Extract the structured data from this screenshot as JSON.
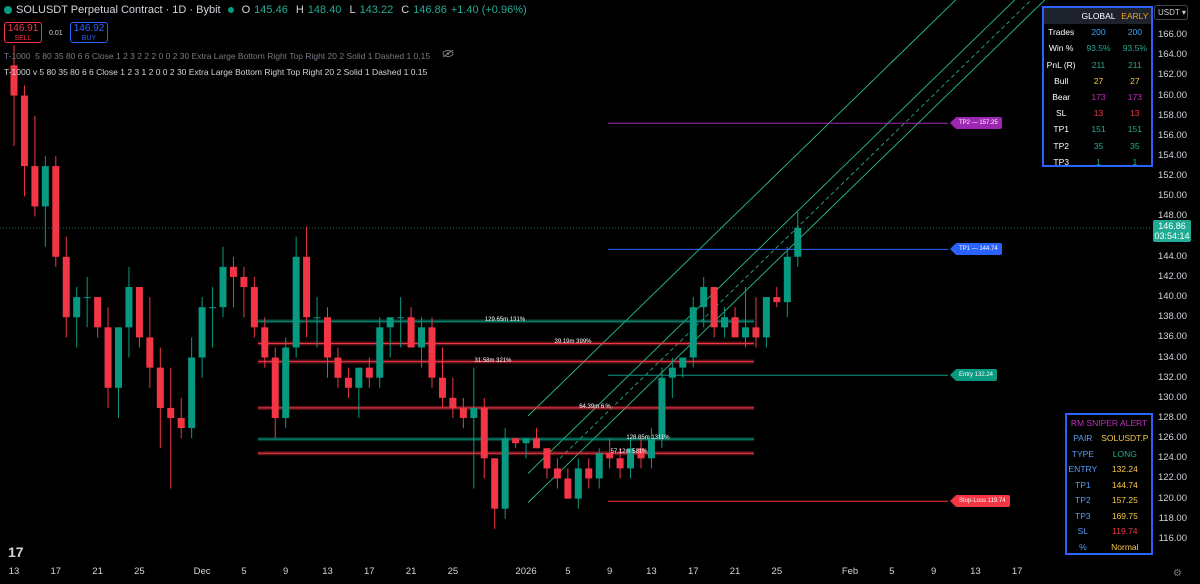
{
  "header": {
    "symbol": "SOLUSDT Perpetual Contract · 1D · Bybit",
    "o_label": "O",
    "o": "145.46",
    "h_label": "H",
    "h": "148.40",
    "l_label": "L",
    "l": "143.22",
    "c_label": "C",
    "c": "146.86",
    "change": "+1.40 (+0.96%)"
  },
  "trade": {
    "sell_price": "146.91",
    "sell_label": "SELL",
    "spread": "0.01",
    "buy_price": "146.92",
    "buy_label": "BUY"
  },
  "indicators": {
    "line1": "T-1000  5 80 35 80 6 6 Close 1 2 3 2 2 2 0 0 2 30 Extra Large Bottom Right Top Right 20 2 Solid 1 Dashed 1 0.15",
    "line2": "T-1000 v 5 80 35 80 6 6 Close 1 2 3 1 2 0 0 2 30 Extra Large Bottom Right Top Right 20 2 Solid 1 Dashed 1 0.15"
  },
  "currency": "USDT",
  "current_price": {
    "price": "146.86",
    "countdown": "03:54:14"
  },
  "y_axis": {
    "ticks": [
      "166.00",
      "164.00",
      "162.00",
      "160.00",
      "158.00",
      "156.00",
      "154.00",
      "152.00",
      "150.00",
      "148.00",
      "144.00",
      "142.00",
      "140.00",
      "138.00",
      "136.00",
      "134.00",
      "132.00",
      "130.00",
      "128.00",
      "126.00",
      "124.00",
      "122.00",
      "120.00",
      "118.00",
      "116.00"
    ],
    "range": [
      115,
      167.5
    ]
  },
  "x_axis": {
    "ticks": [
      {
        "label": "13",
        "i": 0
      },
      {
        "label": "17",
        "i": 4
      },
      {
        "label": "21",
        "i": 8
      },
      {
        "label": "25",
        "i": 12
      },
      {
        "label": "Dec",
        "i": 18
      },
      {
        "label": "5",
        "i": 22
      },
      {
        "label": "9",
        "i": 26
      },
      {
        "label": "13",
        "i": 30
      },
      {
        "label": "17",
        "i": 34
      },
      {
        "label": "21",
        "i": 38
      },
      {
        "label": "25",
        "i": 42
      },
      {
        "label": "2026",
        "i": 49
      },
      {
        "label": "5",
        "i": 53
      },
      {
        "label": "9",
        "i": 57
      },
      {
        "label": "13",
        "i": 61
      },
      {
        "label": "17",
        "i": 65
      },
      {
        "label": "21",
        "i": 69
      },
      {
        "label": "25",
        "i": 73
      },
      {
        "label": "Feb",
        "i": 80
      },
      {
        "label": "5",
        "i": 84
      },
      {
        "label": "9",
        "i": 88
      },
      {
        "label": "13",
        "i": 92
      },
      {
        "label": "17",
        "i": 96
      }
    ]
  },
  "chart_data": {
    "type": "candlestick",
    "symbol": "SOLUSDT",
    "interval": "1D",
    "ylim": [
      115,
      167.5
    ],
    "candles": [
      {
        "o": 163,
        "h": 165,
        "l": 155,
        "c": 160
      },
      {
        "o": 160,
        "h": 161,
        "l": 150,
        "c": 153
      },
      {
        "o": 153,
        "h": 158,
        "l": 148,
        "c": 149
      },
      {
        "o": 149,
        "h": 154,
        "l": 145,
        "c": 153
      },
      {
        "o": 153,
        "h": 154,
        "l": 143,
        "c": 144
      },
      {
        "o": 144,
        "h": 146,
        "l": 136,
        "c": 138
      },
      {
        "o": 138,
        "h": 141,
        "l": 135,
        "c": 140
      },
      {
        "o": 140,
        "h": 142,
        "l": 137,
        "c": 140
      },
      {
        "o": 140,
        "h": 140,
        "l": 136,
        "c": 137
      },
      {
        "o": 137,
        "h": 139,
        "l": 129,
        "c": 131
      },
      {
        "o": 131,
        "h": 137,
        "l": 128,
        "c": 137
      },
      {
        "o": 137,
        "h": 143,
        "l": 134,
        "c": 141
      },
      {
        "o": 141,
        "h": 141,
        "l": 135,
        "c": 136
      },
      {
        "o": 136,
        "h": 140,
        "l": 131,
        "c": 133
      },
      {
        "o": 133,
        "h": 135,
        "l": 125,
        "c": 129
      },
      {
        "o": 129,
        "h": 133,
        "l": 121,
        "c": 128
      },
      {
        "o": 128,
        "h": 130,
        "l": 126,
        "c": 127
      },
      {
        "o": 127,
        "h": 136,
        "l": 126,
        "c": 134
      },
      {
        "o": 134,
        "h": 140,
        "l": 132,
        "c": 139
      },
      {
        "o": 139,
        "h": 141,
        "l": 135,
        "c": 139
      },
      {
        "o": 139,
        "h": 145,
        "l": 138,
        "c": 143
      },
      {
        "o": 143,
        "h": 144,
        "l": 139,
        "c": 142
      },
      {
        "o": 142,
        "h": 143,
        "l": 138,
        "c": 141
      },
      {
        "o": 141,
        "h": 142,
        "l": 136,
        "c": 137
      },
      {
        "o": 137,
        "h": 138,
        "l": 133,
        "c": 134
      },
      {
        "o": 134,
        "h": 135,
        "l": 126,
        "c": 128
      },
      {
        "o": 128,
        "h": 136,
        "l": 127,
        "c": 135
      },
      {
        "o": 135,
        "h": 146,
        "l": 134,
        "c": 144
      },
      {
        "o": 144,
        "h": 147,
        "l": 136,
        "c": 138
      },
      {
        "o": 138,
        "h": 140,
        "l": 135,
        "c": 138
      },
      {
        "o": 138,
        "h": 139,
        "l": 132,
        "c": 134
      },
      {
        "o": 134,
        "h": 135,
        "l": 131,
        "c": 132
      },
      {
        "o": 132,
        "h": 133,
        "l": 130,
        "c": 131
      },
      {
        "o": 131,
        "h": 133,
        "l": 128,
        "c": 133
      },
      {
        "o": 133,
        "h": 134,
        "l": 131,
        "c": 132
      },
      {
        "o": 132,
        "h": 138,
        "l": 131,
        "c": 137
      },
      {
        "o": 137,
        "h": 138,
        "l": 134,
        "c": 138
      },
      {
        "o": 138,
        "h": 140,
        "l": 135,
        "c": 138
      },
      {
        "o": 138,
        "h": 139,
        "l": 135,
        "c": 135
      },
      {
        "o": 135,
        "h": 138,
        "l": 133,
        "c": 137
      },
      {
        "o": 137,
        "h": 138,
        "l": 131,
        "c": 132
      },
      {
        "o": 132,
        "h": 135,
        "l": 129,
        "c": 130
      },
      {
        "o": 130,
        "h": 132,
        "l": 128,
        "c": 129
      },
      {
        "o": 129,
        "h": 130,
        "l": 127,
        "c": 128
      },
      {
        "o": 128,
        "h": 133,
        "l": 121,
        "c": 129
      },
      {
        "o": 129,
        "h": 130,
        "l": 122,
        "c": 124
      },
      {
        "o": 124,
        "h": 124,
        "l": 117,
        "c": 119
      },
      {
        "o": 119,
        "h": 127,
        "l": 118,
        "c": 126
      },
      {
        "o": 126,
        "h": 126,
        "l": 125,
        "c": 125.5
      },
      {
        "o": 125.5,
        "h": 126,
        "l": 124,
        "c": 126
      },
      {
        "o": 126,
        "h": 127,
        "l": 125,
        "c": 125
      },
      {
        "o": 125,
        "h": 125,
        "l": 122,
        "c": 123
      },
      {
        "o": 123,
        "h": 124,
        "l": 121,
        "c": 122
      },
      {
        "o": 122,
        "h": 123,
        "l": 120,
        "c": 120
      },
      {
        "o": 120,
        "h": 124,
        "l": 119,
        "c": 123
      },
      {
        "o": 123,
        "h": 124,
        "l": 121,
        "c": 122
      },
      {
        "o": 122,
        "h": 125,
        "l": 121,
        "c": 124.5
      },
      {
        "o": 124.5,
        "h": 126,
        "l": 123,
        "c": 124
      },
      {
        "o": 124,
        "h": 125,
        "l": 122,
        "c": 123
      },
      {
        "o": 123,
        "h": 126,
        "l": 122,
        "c": 125
      },
      {
        "o": 125,
        "h": 126,
        "l": 123,
        "c": 124
      },
      {
        "o": 124,
        "h": 127,
        "l": 123,
        "c": 126
      },
      {
        "o": 126,
        "h": 133,
        "l": 125,
        "c": 132
      },
      {
        "o": 132,
        "h": 134,
        "l": 130,
        "c": 133
      },
      {
        "o": 133,
        "h": 134,
        "l": 132,
        "c": 134
      },
      {
        "o": 134,
        "h": 140,
        "l": 133,
        "c": 139
      },
      {
        "o": 139,
        "h": 142,
        "l": 137,
        "c": 141
      },
      {
        "o": 141,
        "h": 141,
        "l": 136,
        "c": 137
      },
      {
        "o": 137,
        "h": 139,
        "l": 136,
        "c": 138
      },
      {
        "o": 138,
        "h": 139,
        "l": 136,
        "c": 136
      },
      {
        "o": 136,
        "h": 141,
        "l": 135,
        "c": 137
      },
      {
        "o": 137,
        "h": 140,
        "l": 135,
        "c": 136
      },
      {
        "o": 136,
        "h": 140,
        "l": 135,
        "c": 140
      },
      {
        "o": 140,
        "h": 141,
        "l": 139,
        "c": 139.5
      },
      {
        "o": 139.5,
        "h": 145,
        "l": 138,
        "c": 144
      },
      {
        "o": 144,
        "h": 148.4,
        "l": 143,
        "c": 146.86
      }
    ],
    "levels": [
      {
        "label": "TP2 — 157.25",
        "price": 157.25,
        "color": "#9c27b0"
      },
      {
        "label": "TP1 — 144.74",
        "price": 144.74,
        "color": "#2962ff"
      },
      {
        "label": "Entry 132.24",
        "price": 132.24,
        "color": "#089981"
      },
      {
        "label": "Stop-Loss 119.74",
        "price": 119.74,
        "color": "#f23645"
      }
    ],
    "volume_zones": [
      {
        "label": "129.65m  131%",
        "price": 137.6,
        "color": "green"
      },
      {
        "label": "39.19m  399%",
        "price": 135.4,
        "color": "red"
      },
      {
        "label": "31.58m  321%",
        "price": 133.6,
        "color": "red"
      },
      {
        "label": "64.39m  6 %",
        "price": 129.0,
        "color": "red"
      },
      {
        "label": "128.85m  1311%",
        "price": 125.9,
        "color": "green"
      },
      {
        "label": "57.12m  581%",
        "price": 124.5,
        "color": "red"
      }
    ]
  },
  "stats": {
    "headers": [
      "",
      "GLOBAL",
      "EARLY"
    ],
    "rows": [
      {
        "label": "Trades",
        "global": "200",
        "early": "200",
        "color": "#42a5f5"
      },
      {
        "label": "Win %",
        "global": "93.5%",
        "early": "93.5%",
        "color": "#22ab94"
      },
      {
        "label": "PnL (R)",
        "global": "211",
        "early": "211",
        "color": "#22ab94"
      },
      {
        "label": "Bull",
        "global": "27",
        "early": "27",
        "color": "#f7c948"
      },
      {
        "label": "Bear",
        "global": "173",
        "early": "173",
        "color": "#c02ec0"
      },
      {
        "label": "SL",
        "global": "13",
        "early": "13",
        "color": "#f23645"
      },
      {
        "label": "TP1",
        "global": "151",
        "early": "151",
        "color": "#22ab94"
      },
      {
        "label": "TP2",
        "global": "35",
        "early": "35",
        "color": "#22ab94"
      },
      {
        "label": "TP3",
        "global": "1",
        "early": "1",
        "color": "#22ab94"
      }
    ]
  },
  "alert": {
    "title": "RM SNIPER ALERT",
    "rows": [
      {
        "label": "PAIR",
        "value": "SOLUSDT.P",
        "color": "#f7c948"
      },
      {
        "label": "TYPE",
        "value": "LONG",
        "color": "#22ab94"
      },
      {
        "label": "ENTRY",
        "value": "132.24",
        "color": "#f7c948"
      },
      {
        "label": "TP1",
        "value": "144.74",
        "color": "#f7c948"
      },
      {
        "label": "TP2",
        "value": "157.25",
        "color": "#f7c948"
      },
      {
        "label": "TP3",
        "value": "169.75",
        "color": "#f7c948"
      },
      {
        "label": "SL",
        "value": "119.74",
        "color": "#f23645"
      },
      {
        "label": "%",
        "value": "Normal",
        "color": "#f7c948"
      }
    ]
  },
  "colors": {
    "up": "#089981",
    "down": "#f23645",
    "accent": "#2962ff"
  }
}
